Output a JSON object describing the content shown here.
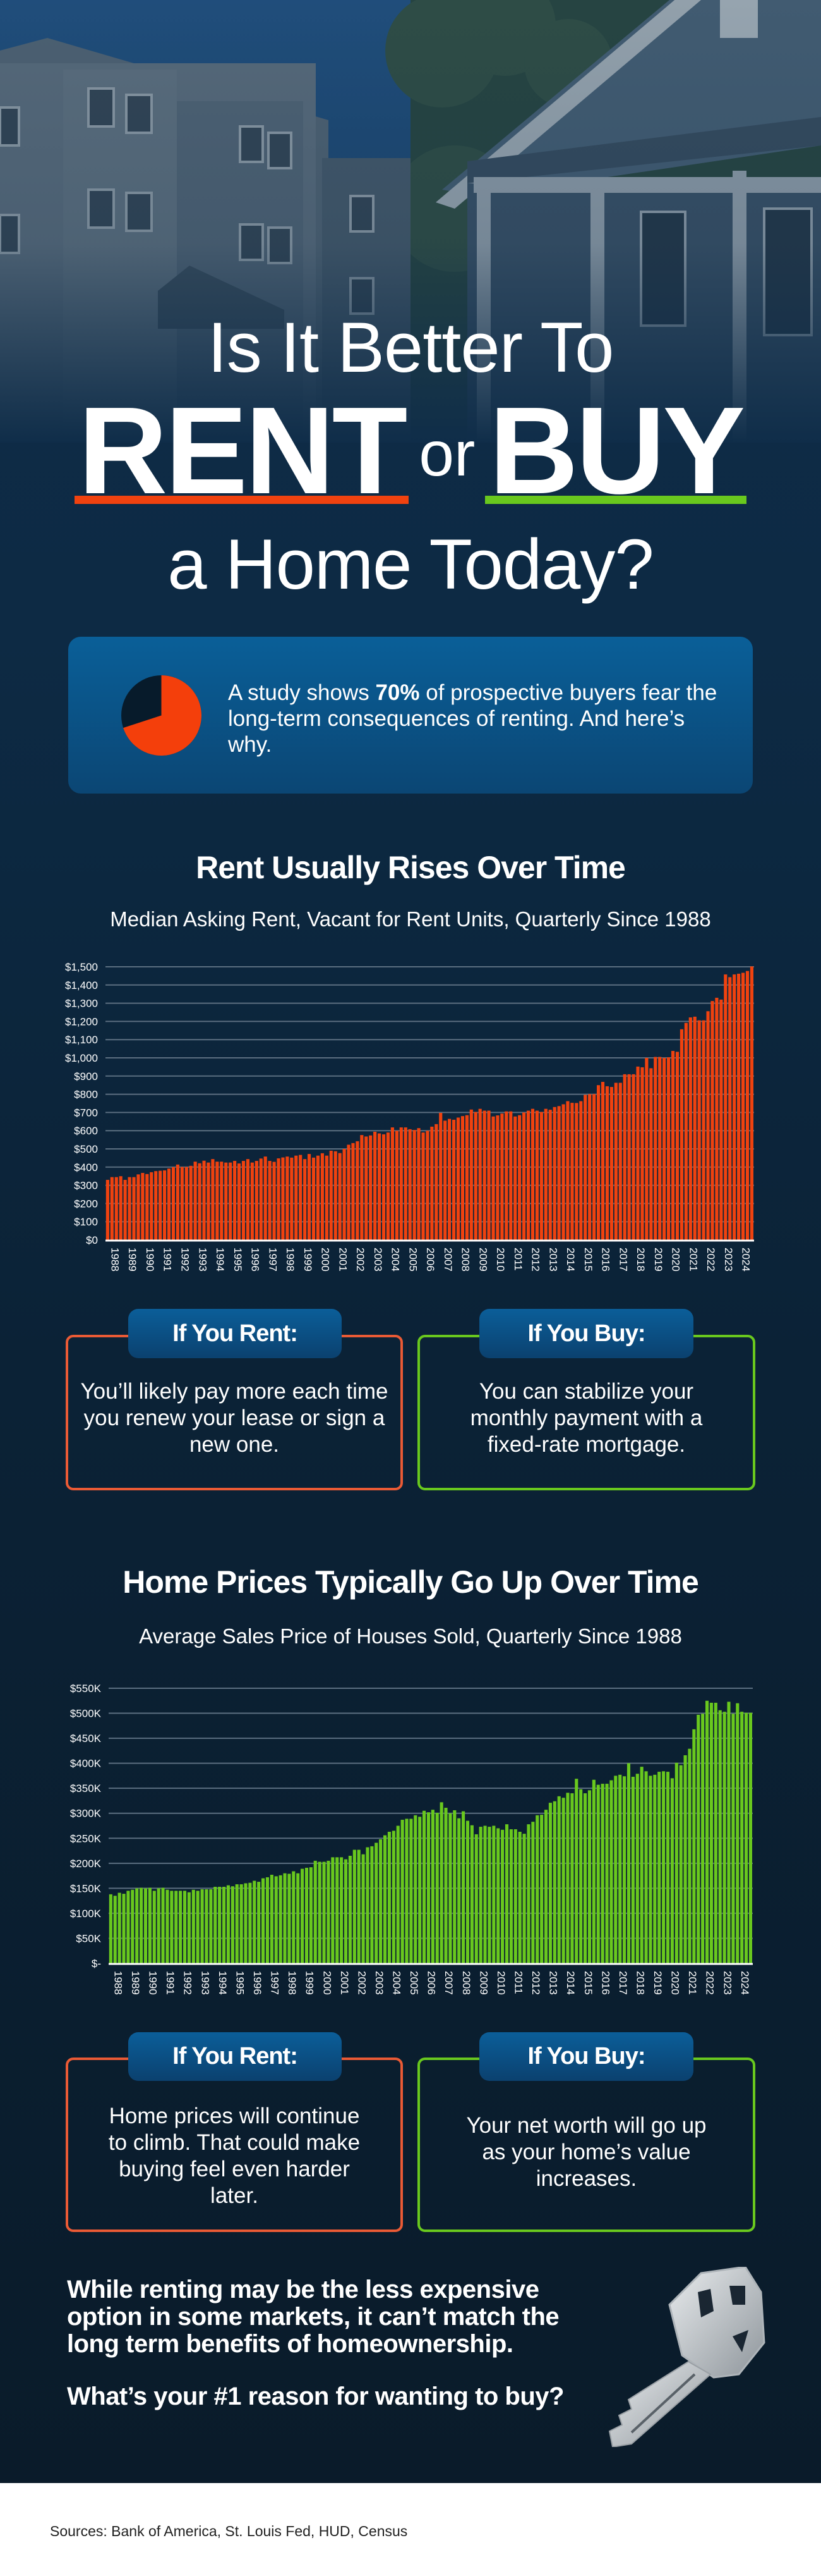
{
  "header": {
    "line1": "Is It Better To",
    "rent_word": "RENT",
    "or_word": "or",
    "buy_word": "BUY",
    "line3": "a Home Today?",
    "rent_color": "#f0420f",
    "buy_color": "#69c81e"
  },
  "callout": {
    "pie_icon": "pie-chart-icon",
    "percent_value": 70,
    "text_before": "A study shows ",
    "text_bold": "70%",
    "text_after": " of prospective buyers fear the long-term consequences of renting. And here’s why."
  },
  "section1": {
    "title": "Rent Usually Rises Over Time",
    "subtitle": "Median Asking Rent, Vacant for Rent Units, Quarterly Since 1988",
    "rent_card": {
      "label": "If You Rent:",
      "text": "You’ll likely pay more each time you renew your lease or sign a new one."
    },
    "buy_card": {
      "label": "If You Buy:",
      "text": "You can stabilize your monthly payment with a fixed-rate mortgage."
    }
  },
  "section2": {
    "title": "Home Prices Typically Go Up Over Time",
    "subtitle": "Average Sales Price of Houses Sold, Quarterly Since 1988",
    "rent_card": {
      "label": "If You Rent:",
      "text": "Home prices will continue to climb. That could make buying feel even harder later."
    },
    "buy_card": {
      "label": "If You Buy:",
      "text": "Your net worth will go up as your home’s value increases."
    }
  },
  "closing": {
    "statement": "While renting may be the less expensive option in some markets, it can’t match the long term benefits of homeownership.",
    "question": "What’s your #1 reason for wanting to buy?",
    "key_icon": "key-icon"
  },
  "footer": {
    "sources": "Sources: Bank of America, St. Louis Fed, HUD, Census"
  },
  "chart_data": [
    {
      "type": "bar",
      "title": "Median Asking Rent, Vacant for Rent Units, Quarterly Since 1988",
      "frequency": "quarterly",
      "color": "#f0420f",
      "grid": true,
      "ylim": [
        0,
        1500
      ],
      "y_ticks": [
        0,
        100,
        200,
        300,
        400,
        500,
        600,
        700,
        800,
        900,
        1000,
        1100,
        1200,
        1300,
        1400,
        1500
      ],
      "y_tick_labels": [
        "$0",
        "$100",
        "$200",
        "$300",
        "$400",
        "$500",
        "$600",
        "$700",
        "$800",
        "$900",
        "$1,000",
        "$1,100",
        "$1,200",
        "$1,300",
        "$1,400",
        "$1,500"
      ],
      "x_tick_labels": [
        "1988",
        "1989",
        "1990",
        "1991",
        "1992",
        "1993",
        "1994",
        "1995",
        "1996",
        "1997",
        "1998",
        "1999",
        "2000",
        "2001",
        "2002",
        "2003",
        "2004",
        "2005",
        "2006",
        "2007",
        "2008",
        "2009",
        "2010",
        "2011",
        "2012",
        "2013",
        "2014",
        "2015",
        "2016",
        "2017",
        "2018",
        "2019",
        "2020",
        "2021",
        "2022",
        "2023",
        "2024"
      ],
      "values": [
        330,
        345,
        345,
        350,
        330,
        345,
        345,
        360,
        368,
        362,
        372,
        378,
        380,
        382,
        392,
        400,
        414,
        401,
        401,
        407,
        430,
        421,
        435,
        425,
        444,
        430,
        430,
        425,
        425,
        434,
        420,
        434,
        444,
        425,
        434,
        447,
        458,
        434,
        429,
        448,
        453,
        458,
        452,
        463,
        467,
        444,
        472,
        452,
        463,
        476,
        463,
        490,
        487,
        477,
        500,
        523,
        532,
        542,
        576,
        568,
        574,
        594,
        585,
        580,
        590,
        618,
        600,
        618,
        618,
        608,
        604,
        614,
        590,
        600,
        622,
        636,
        698,
        655,
        665,
        660,
        672,
        680,
        685,
        716,
        703,
        720,
        710,
        710,
        678,
        684,
        694,
        706,
        706,
        678,
        685,
        700,
        710,
        720,
        710,
        703,
        720,
        715,
        730,
        735,
        745,
        762,
        753,
        752,
        762,
        797,
        801,
        801,
        850,
        868,
        844,
        840,
        863,
        863,
        910,
        910,
        910,
        952,
        948,
        1000,
        943,
        1005,
        1005,
        1000,
        1003,
        1038,
        1033,
        1157,
        1192,
        1222,
        1226,
        1206,
        1206,
        1256,
        1312,
        1330,
        1320,
        1458,
        1443,
        1458,
        1462,
        1467,
        1477,
        1502
      ]
    },
    {
      "type": "bar",
      "title": "Average Sales Price of Houses Sold, Quarterly Since 1988",
      "frequency": "quarterly",
      "color": "#69c81e",
      "grid": true,
      "ylim": [
        0,
        550000
      ],
      "y_ticks": [
        0,
        50000,
        100000,
        150000,
        200000,
        250000,
        300000,
        350000,
        400000,
        450000,
        500000,
        550000
      ],
      "y_tick_labels": [
        "$-",
        "$50K",
        "$100K",
        "$150K",
        "$200K",
        "$250K",
        "$300K",
        "$350K",
        "$400K",
        "$450K",
        "$500K",
        "$550K"
      ],
      "x_tick_labels": [
        "1988",
        "1989",
        "1990",
        "1991",
        "1992",
        "1993",
        "1994",
        "1995",
        "1996",
        "1997",
        "1998",
        "1999",
        "2000",
        "2001",
        "2002",
        "2003",
        "2004",
        "2005",
        "2006",
        "2007",
        "2008",
        "2009",
        "2010",
        "2011",
        "2012",
        "2013",
        "2014",
        "2015",
        "2016",
        "2017",
        "2018",
        "2019",
        "2020",
        "2021",
        "2022",
        "2023",
        "2024"
      ],
      "values": [
        138000,
        135000,
        141000,
        139000,
        145000,
        147000,
        150000,
        151000,
        150000,
        151000,
        145000,
        150000,
        151000,
        147000,
        145000,
        145000,
        145000,
        145000,
        142000,
        147000,
        145000,
        148000,
        148000,
        148000,
        153000,
        153000,
        153000,
        156000,
        154000,
        158000,
        158000,
        160000,
        161000,
        165000,
        163000,
        170000,
        172000,
        177000,
        174000,
        176000,
        180000,
        179000,
        184000,
        180000,
        189000,
        191000,
        192000,
        205000,
        203000,
        203000,
        205000,
        212000,
        212000,
        212000,
        208000,
        215000,
        227000,
        227000,
        218000,
        232000,
        234000,
        241000,
        248000,
        256000,
        263000,
        265000,
        275000,
        287000,
        289000,
        289000,
        296000,
        293000,
        305000,
        302000,
        307000,
        301000,
        322000,
        311000,
        300000,
        306000,
        290000,
        304000,
        285000,
        276000,
        258000,
        273000,
        275000,
        273000,
        275000,
        270000,
        267000,
        278000,
        268000,
        268000,
        263000,
        259000,
        278000,
        283000,
        296000,
        297000,
        307000,
        321000,
        324000,
        334000,
        331000,
        341000,
        340000,
        369000,
        348000,
        340000,
        346000,
        367000,
        357000,
        359000,
        359000,
        366000,
        375000,
        377000,
        374000,
        400000,
        373000,
        379000,
        393000,
        384000,
        375000,
        377000,
        383000,
        384000,
        383000,
        370000,
        401000,
        396000,
        416000,
        429000,
        468000,
        497000,
        499000,
        525000,
        521000,
        521000,
        506000,
        503000,
        523000,
        499000,
        520000,
        503000,
        501000,
        501000
      ]
    }
  ]
}
